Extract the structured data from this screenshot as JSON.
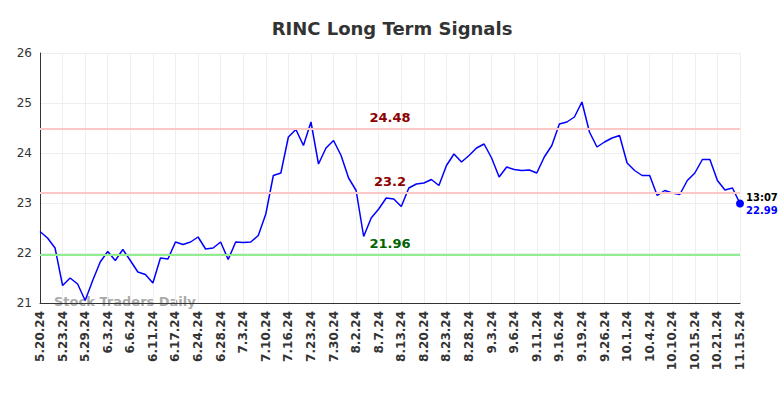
{
  "chart_data": {
    "type": "line",
    "title": "RINC Long Term Signals",
    "categories": [
      "5.20.24",
      null,
      null,
      "5.23.24",
      null,
      null,
      "5.29.24",
      null,
      null,
      "6.3.24",
      null,
      null,
      "6.6.24",
      null,
      null,
      "6.11.24",
      null,
      null,
      "6.17.24",
      null,
      null,
      "6.24.24",
      null,
      null,
      "6.28.24",
      null,
      null,
      "7.3.24",
      null,
      null,
      "7.10.24",
      null,
      null,
      "7.16.24",
      null,
      null,
      "7.23.24",
      null,
      null,
      "7.30.24",
      null,
      null,
      "8.2.24",
      null,
      null,
      "8.7.24",
      null,
      null,
      "8.13.24",
      null,
      null,
      "8.20.24",
      null,
      null,
      "8.23.24",
      null,
      null,
      "8.28.24",
      null,
      null,
      "9.3.24",
      null,
      null,
      "9.6.24",
      null,
      null,
      "9.11.24",
      null,
      null,
      "9.16.24",
      null,
      null,
      "9.19.24",
      null,
      null,
      "9.26.24",
      null,
      null,
      "10.1.24",
      null,
      null,
      "10.4.24",
      null,
      null,
      "10.10.24",
      null,
      null,
      "10.15.24",
      null,
      null,
      "10.21.24",
      null,
      null,
      "11.15.24"
    ],
    "values": [
      22.43,
      22.3,
      22.1,
      21.35,
      21.5,
      21.38,
      21.05,
      21.45,
      21.82,
      22.03,
      21.85,
      22.07,
      21.85,
      21.62,
      21.57,
      21.4,
      21.9,
      21.88,
      22.22,
      22.17,
      22.22,
      22.32,
      22.08,
      22.1,
      22.22,
      21.87,
      22.22,
      22.21,
      22.22,
      22.35,
      22.78,
      23.55,
      23.6,
      24.32,
      24.47,
      24.15,
      24.62,
      23.78,
      24.1,
      24.25,
      23.95,
      23.5,
      23.25,
      22.33,
      22.7,
      22.88,
      23.1,
      23.08,
      22.93,
      23.3,
      23.38,
      23.4,
      23.47,
      23.35,
      23.75,
      23.98,
      23.82,
      23.95,
      24.1,
      24.18,
      23.9,
      23.52,
      23.72,
      23.67,
      23.65,
      23.66,
      23.6,
      23.92,
      24.15,
      24.58,
      24.62,
      24.72,
      25.02,
      24.42,
      24.12,
      24.22,
      24.3,
      24.35,
      23.8,
      23.65,
      23.55,
      23.55,
      23.15,
      23.25,
      23.2,
      23.17,
      23.45,
      23.6,
      23.87,
      23.87,
      23.45,
      23.26,
      23.3,
      22.99
    ],
    "color": "#0000ff",
    "ylim": [
      21,
      26
    ],
    "yticks": [
      21,
      22,
      23,
      24,
      25,
      26
    ],
    "grid": true,
    "reference_lines": [
      {
        "value": 24.48,
        "color": "#8b0000"
      },
      {
        "value": 23.2,
        "color": "#8b0000"
      },
      {
        "value": 21.96,
        "color": "#006400"
      }
    ],
    "annotations": [
      {
        "text": "13:07"
      }
    ],
    "watermark": "Stock Traders Daily"
  }
}
